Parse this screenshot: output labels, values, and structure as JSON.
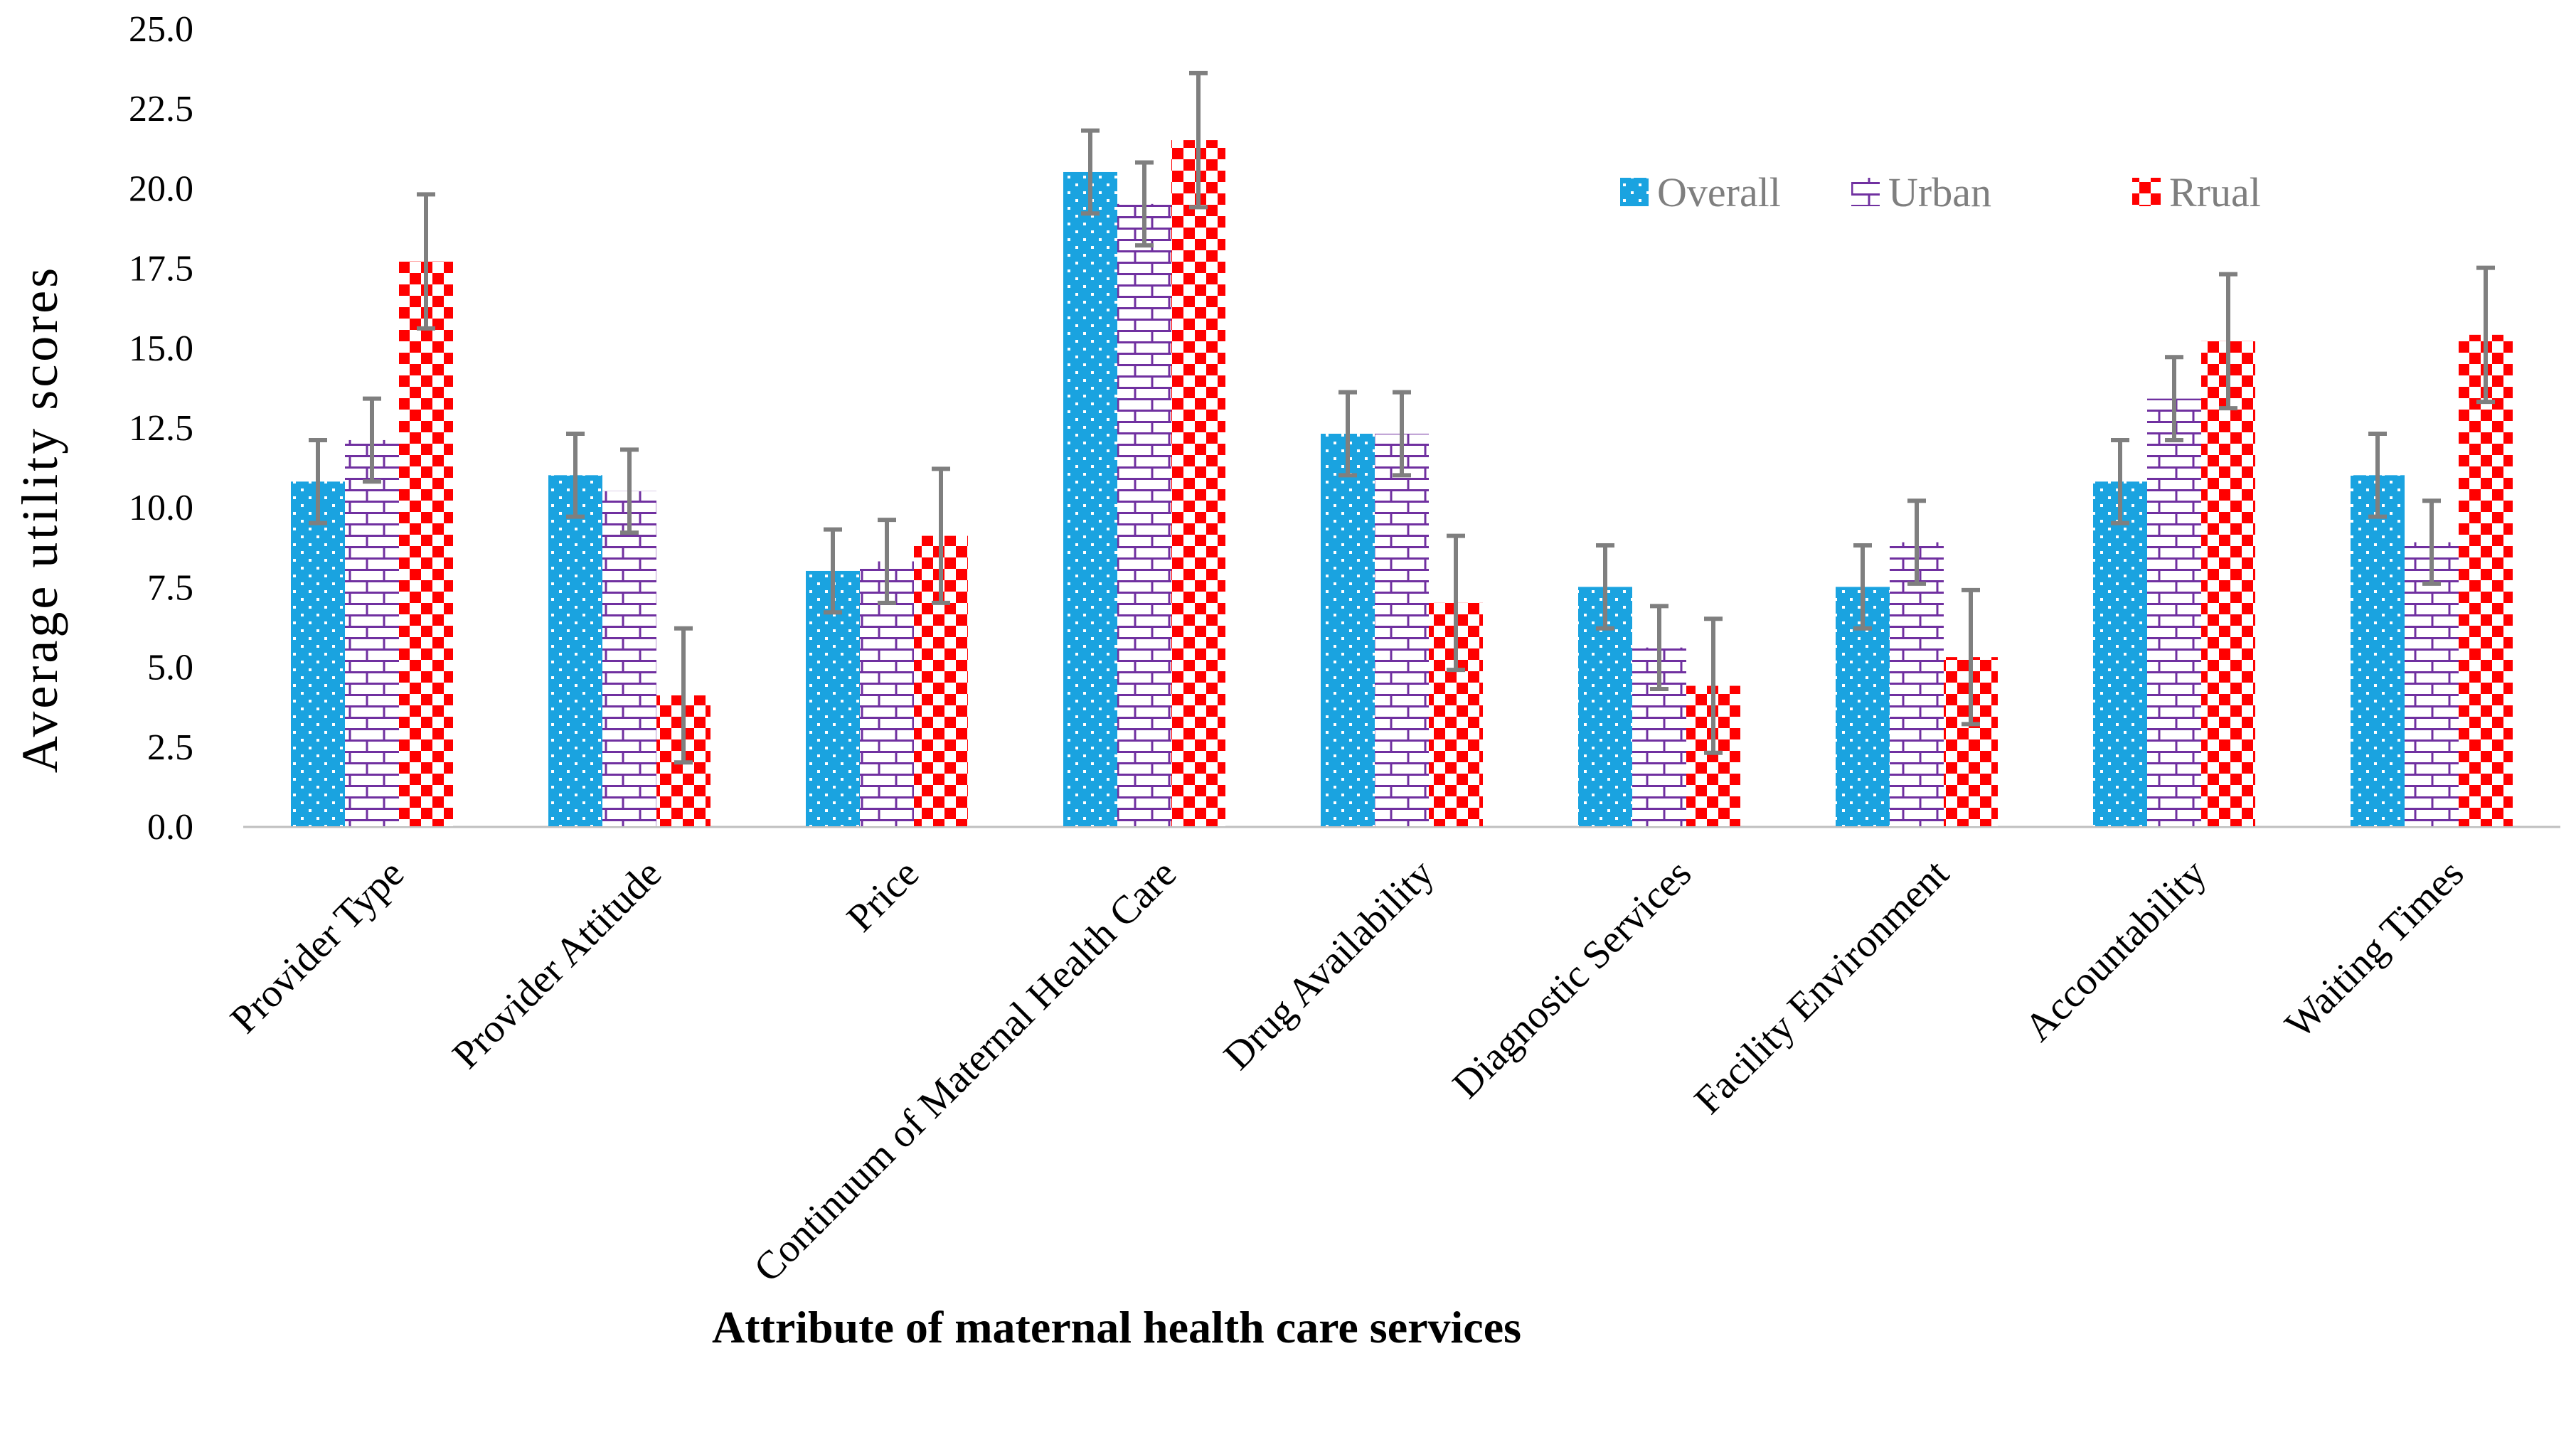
{
  "chart_data": {
    "type": "bar",
    "title": "",
    "xlabel": "Attribute of maternal health care services",
    "ylabel": "Average  utility  scores",
    "ylim": [
      0,
      25
    ],
    "ytick_labels": [
      "0.0",
      "2.5",
      "5.0",
      "7.5",
      "10.0",
      "12.5",
      "15.0",
      "17.5",
      "20.0",
      "22.5",
      "25.0"
    ],
    "grid": false,
    "legend_position": "top-right",
    "categories": [
      "Provider Type",
      "Provider Attitude",
      "Price",
      "Continuum of Maternal Health Care",
      "Drug Availability",
      "Diagnostic Services",
      "Facility Environment",
      "Accountability",
      "Waiting Times"
    ],
    "series": [
      {
        "name": "Overall",
        "color": "#1aa3e0",
        "pattern": "dots",
        "values": [
          10.8,
          11.0,
          8.0,
          20.5,
          12.3,
          7.5,
          7.5,
          10.8,
          11.0
        ],
        "error": [
          1.3,
          1.3,
          1.3,
          1.3,
          1.3,
          1.3,
          1.3,
          1.3,
          1.3
        ]
      },
      {
        "name": "Urban",
        "color": "#7030a0",
        "pattern": "brick",
        "values": [
          12.1,
          10.5,
          8.3,
          19.5,
          12.3,
          5.6,
          8.9,
          13.4,
          8.9
        ],
        "error": [
          1.3,
          1.3,
          1.3,
          1.3,
          1.3,
          1.3,
          1.3,
          1.3,
          1.3
        ]
      },
      {
        "name": "Rrual",
        "color": "#ff0000",
        "pattern": "checker",
        "values": [
          17.7,
          4.1,
          9.1,
          21.5,
          7.0,
          4.4,
          5.3,
          15.2,
          15.4
        ],
        "error": [
          2.1,
          2.1,
          2.1,
          2.1,
          2.1,
          2.1,
          2.1,
          2.1,
          2.1
        ]
      }
    ]
  }
}
